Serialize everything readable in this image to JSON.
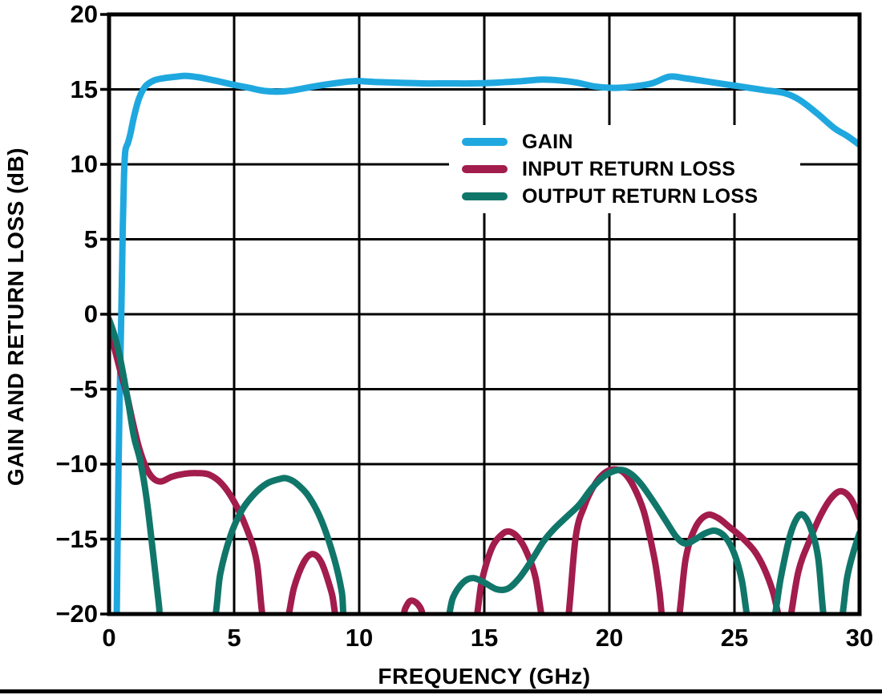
{
  "chart_data": {
    "type": "line",
    "title": "",
    "xlabel": "FREQUENCY (GHz)",
    "ylabel": "GAIN AND RETURN LOSS (dB)",
    "xlim": [
      0,
      30
    ],
    "ylim": [
      -20,
      20
    ],
    "x_ticks": [
      0,
      5,
      10,
      15,
      20,
      25,
      30
    ],
    "y_ticks": [
      20,
      15,
      10,
      5,
      0,
      -5,
      -10,
      -15,
      -20
    ],
    "x_tick_labels": [
      "0",
      "5",
      "10",
      "15",
      "20",
      "25",
      "30"
    ],
    "y_tick_labels": [
      "20",
      "15",
      "10",
      "5",
      "0",
      "−5",
      "−10",
      "−15",
      "−20"
    ],
    "grid": true,
    "legend_position": "inside upper-right",
    "frame_color": "#000000",
    "series": [
      {
        "name": "GAIN",
        "color": "#1FA8DF",
        "points": [
          [
            0.3,
            -21
          ],
          [
            0.35,
            -14
          ],
          [
            0.42,
            -6
          ],
          [
            0.5,
            1
          ],
          [
            0.55,
            6
          ],
          [
            0.6,
            9.3
          ],
          [
            0.65,
            10.9
          ],
          [
            0.75,
            11.4
          ],
          [
            0.85,
            12.0
          ],
          [
            1.0,
            13.2
          ],
          [
            1.2,
            14.4
          ],
          [
            1.45,
            15.2
          ],
          [
            1.8,
            15.6
          ],
          [
            2.2,
            15.75
          ],
          [
            2.7,
            15.85
          ],
          [
            3.1,
            15.9
          ],
          [
            3.6,
            15.8
          ],
          [
            4.2,
            15.6
          ],
          [
            5.0,
            15.3
          ],
          [
            5.6,
            15.1
          ],
          [
            6.2,
            14.9
          ],
          [
            6.8,
            14.85
          ],
          [
            7.4,
            14.95
          ],
          [
            8.2,
            15.2
          ],
          [
            9.0,
            15.4
          ],
          [
            9.8,
            15.55
          ],
          [
            10.6,
            15.5
          ],
          [
            11.5,
            15.45
          ],
          [
            12.5,
            15.4
          ],
          [
            13.5,
            15.4
          ],
          [
            14.5,
            15.4
          ],
          [
            15.5,
            15.45
          ],
          [
            16.5,
            15.55
          ],
          [
            17.3,
            15.65
          ],
          [
            18.0,
            15.6
          ],
          [
            18.7,
            15.45
          ],
          [
            19.4,
            15.2
          ],
          [
            20.2,
            15.1
          ],
          [
            21.0,
            15.2
          ],
          [
            21.7,
            15.4
          ],
          [
            22.4,
            15.85
          ],
          [
            23.0,
            15.75
          ],
          [
            23.8,
            15.55
          ],
          [
            24.6,
            15.35
          ],
          [
            25.4,
            15.15
          ],
          [
            26.2,
            14.95
          ],
          [
            27.0,
            14.75
          ],
          [
            27.6,
            14.3
          ],
          [
            28.3,
            13.4
          ],
          [
            29.0,
            12.4
          ],
          [
            29.5,
            11.9
          ],
          [
            30.0,
            11.3
          ]
        ]
      },
      {
        "name": "INPUT RETURN LOSS",
        "color": "#A21C4C",
        "points": [
          [
            0,
            -1.0
          ],
          [
            0.25,
            -2.5
          ],
          [
            0.5,
            -4.1
          ],
          [
            0.7,
            -5.3
          ],
          [
            0.95,
            -7.2
          ],
          [
            1.2,
            -8.9
          ],
          [
            1.5,
            -10.3
          ],
          [
            1.8,
            -11.0
          ],
          [
            2.1,
            -11.15
          ],
          [
            2.5,
            -10.85
          ],
          [
            3.0,
            -10.65
          ],
          [
            3.5,
            -10.6
          ],
          [
            4.0,
            -10.7
          ],
          [
            4.5,
            -11.3
          ],
          [
            5.0,
            -12.5
          ],
          [
            5.5,
            -14.3
          ],
          [
            5.9,
            -16.5
          ],
          [
            6.25,
            -21
          ],
          [
            7.0,
            -21
          ],
          [
            7.4,
            -18.2
          ],
          [
            7.8,
            -16.5
          ],
          [
            8.15,
            -16.0
          ],
          [
            8.5,
            -16.6
          ],
          [
            8.9,
            -18.6
          ],
          [
            9.25,
            -21
          ],
          [
            10.5,
            -22
          ],
          [
            11.55,
            -21
          ],
          [
            11.85,
            -19.6
          ],
          [
            12.1,
            -19.1
          ],
          [
            12.45,
            -19.6
          ],
          [
            12.75,
            -21
          ],
          [
            13.6,
            -22
          ],
          [
            14.55,
            -21
          ],
          [
            14.9,
            -17.8
          ],
          [
            15.3,
            -15.6
          ],
          [
            15.7,
            -14.7
          ],
          [
            16.0,
            -14.5
          ],
          [
            16.35,
            -14.9
          ],
          [
            16.7,
            -15.9
          ],
          [
            17.05,
            -17.6
          ],
          [
            17.4,
            -21
          ],
          [
            17.9,
            -22
          ],
          [
            18.3,
            -21
          ],
          [
            18.65,
            -14.9
          ],
          [
            19.0,
            -12.8
          ],
          [
            19.4,
            -11.4
          ],
          [
            19.8,
            -10.6
          ],
          [
            20.2,
            -10.35
          ],
          [
            20.6,
            -10.6
          ],
          [
            21.0,
            -11.6
          ],
          [
            21.4,
            -13.3
          ],
          [
            21.8,
            -16.3
          ],
          [
            22.0,
            -18.5
          ],
          [
            22.2,
            -21
          ],
          [
            22.7,
            -21
          ],
          [
            23.05,
            -16.3
          ],
          [
            23.45,
            -14.2
          ],
          [
            23.9,
            -13.4
          ],
          [
            24.35,
            -13.6
          ],
          [
            24.8,
            -14.2
          ],
          [
            25.3,
            -14.9
          ],
          [
            25.8,
            -15.8
          ],
          [
            26.2,
            -17.0
          ],
          [
            26.55,
            -18.6
          ],
          [
            26.9,
            -21
          ],
          [
            27.15,
            -21
          ],
          [
            27.55,
            -17.2
          ],
          [
            28.0,
            -15.1
          ],
          [
            28.45,
            -13.4
          ],
          [
            28.85,
            -12.3
          ],
          [
            29.25,
            -11.8
          ],
          [
            29.65,
            -12.3
          ],
          [
            30.0,
            -13.6
          ]
        ]
      },
      {
        "name": "OUTPUT RETURN LOSS",
        "color": "#11766A",
        "points": [
          [
            0,
            -0.35
          ],
          [
            0.2,
            -1.3
          ],
          [
            0.4,
            -2.6
          ],
          [
            0.6,
            -4.3
          ],
          [
            0.8,
            -6.2
          ],
          [
            1.0,
            -8.2
          ],
          [
            1.25,
            -9.8
          ],
          [
            1.5,
            -12.3
          ],
          [
            1.75,
            -15.8
          ],
          [
            2.0,
            -19.5
          ],
          [
            2.1,
            -21
          ],
          [
            3.0,
            -22
          ],
          [
            4.1,
            -21
          ],
          [
            4.45,
            -17.3
          ],
          [
            4.85,
            -14.8
          ],
          [
            5.3,
            -13.1
          ],
          [
            5.8,
            -12.0
          ],
          [
            6.3,
            -11.3
          ],
          [
            6.8,
            -11.0
          ],
          [
            7.1,
            -10.95
          ],
          [
            7.5,
            -11.3
          ],
          [
            8.0,
            -12.2
          ],
          [
            8.5,
            -13.8
          ],
          [
            9.0,
            -16.3
          ],
          [
            9.3,
            -18.5
          ],
          [
            9.5,
            -21
          ],
          [
            10.5,
            -22
          ],
          [
            12.0,
            -22
          ],
          [
            13.35,
            -21
          ],
          [
            13.75,
            -18.9
          ],
          [
            14.15,
            -17.9
          ],
          [
            14.55,
            -17.6
          ],
          [
            15.0,
            -17.9
          ],
          [
            15.5,
            -18.35
          ],
          [
            15.95,
            -18.3
          ],
          [
            16.4,
            -17.6
          ],
          [
            16.9,
            -16.4
          ],
          [
            17.35,
            -15.2
          ],
          [
            17.8,
            -14.3
          ],
          [
            18.3,
            -13.5
          ],
          [
            18.8,
            -12.7
          ],
          [
            19.3,
            -11.6
          ],
          [
            19.8,
            -10.8
          ],
          [
            20.2,
            -10.45
          ],
          [
            20.55,
            -10.4
          ],
          [
            20.9,
            -10.7
          ],
          [
            21.3,
            -11.4
          ],
          [
            21.8,
            -12.6
          ],
          [
            22.3,
            -13.9
          ],
          [
            22.7,
            -14.9
          ],
          [
            23.05,
            -15.3
          ],
          [
            23.45,
            -15.0
          ],
          [
            23.85,
            -14.6
          ],
          [
            24.25,
            -14.45
          ],
          [
            24.65,
            -14.9
          ],
          [
            25.0,
            -16.0
          ],
          [
            25.3,
            -17.8
          ],
          [
            25.6,
            -21
          ],
          [
            26.0,
            -22
          ],
          [
            26.5,
            -21
          ],
          [
            26.85,
            -17.6
          ],
          [
            27.2,
            -14.9
          ],
          [
            27.5,
            -13.6
          ],
          [
            27.75,
            -13.4
          ],
          [
            28.05,
            -14.3
          ],
          [
            28.35,
            -16.3
          ],
          [
            28.65,
            -21
          ],
          [
            29.2,
            -21
          ],
          [
            29.5,
            -17.6
          ],
          [
            29.75,
            -15.9
          ],
          [
            30.0,
            -14.6
          ]
        ]
      }
    ]
  }
}
